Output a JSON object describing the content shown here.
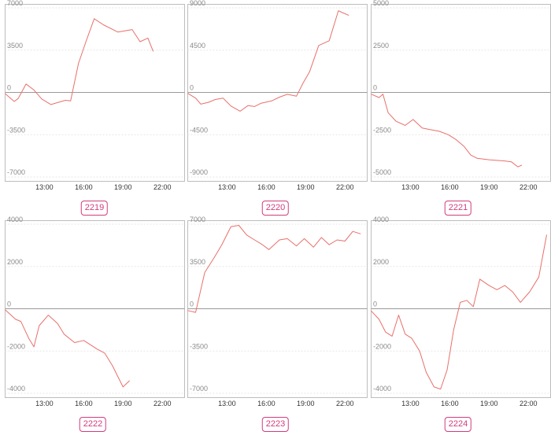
{
  "series_color": "#e8706b",
  "label_color": "#d23b7d",
  "chart_data": [
    {
      "type": "line",
      "title": "2219",
      "y_ticks": [
        7000,
        3500,
        0,
        -3500,
        -7000
      ],
      "ylim": [
        -7000,
        7000
      ],
      "x_ticks": [
        "13:00",
        "16:00",
        "19:00",
        "22:00"
      ],
      "x_ticks_hours": [
        13,
        16,
        19,
        22
      ],
      "xlim": [
        10.0,
        23.7
      ],
      "x_hours": [
        10.0,
        10.7,
        11.0,
        11.6,
        12.2,
        12.8,
        13.5,
        14.6,
        15.0,
        15.6,
        16.2,
        16.8,
        17.5,
        18.6,
        19.7,
        20.3,
        20.9,
        21.3
      ],
      "values": [
        -100,
        -750,
        -500,
        700,
        200,
        -550,
        -1000,
        -650,
        -700,
        2400,
        4300,
        6100,
        5600,
        5000,
        5200,
        4200,
        4500,
        3400
      ]
    },
    {
      "type": "line",
      "title": "2220",
      "y_ticks": [
        9000,
        4500,
        0,
        -4500,
        -9000
      ],
      "ylim": [
        -9000,
        9000
      ],
      "x_ticks": [
        "13:00",
        "16:00",
        "19:00",
        "22:00"
      ],
      "x_ticks_hours": [
        13,
        16,
        19,
        22
      ],
      "xlim": [
        10.0,
        23.7
      ],
      "x_hours": [
        10.0,
        10.6,
        11.0,
        11.6,
        12.1,
        12.7,
        13.3,
        14.0,
        14.6,
        15.1,
        15.6,
        16.4,
        17.0,
        17.6,
        18.3,
        18.8,
        19.3,
        20.0,
        20.8,
        21.5,
        21.8,
        22.3
      ],
      "values": [
        -100,
        -600,
        -1250,
        -1050,
        -750,
        -600,
        -1450,
        -2000,
        -1400,
        -1500,
        -1150,
        -900,
        -500,
        -200,
        -400,
        1000,
        2200,
        5000,
        5500,
        8700,
        8500,
        8200
      ]
    },
    {
      "type": "line",
      "title": "2221",
      "y_ticks": [
        5000,
        2500,
        0,
        -2500,
        -5000
      ],
      "ylim": [
        -5000,
        5000
      ],
      "x_ticks": [
        "13:00",
        "16:00",
        "19:00",
        "22:00"
      ],
      "x_ticks_hours": [
        13,
        16,
        19,
        22
      ],
      "xlim": [
        10.0,
        23.7
      ],
      "x_hours": [
        10.0,
        10.6,
        10.9,
        11.3,
        11.9,
        12.6,
        13.2,
        13.9,
        14.5,
        15.2,
        15.9,
        16.5,
        17.1,
        17.6,
        18.1,
        19.0,
        20.2,
        20.7,
        21.2,
        21.5
      ],
      "values": [
        -100,
        -300,
        -100,
        -1200,
        -1700,
        -1950,
        -1600,
        -2100,
        -2200,
        -2300,
        -2500,
        -2800,
        -3200,
        -3700,
        -3900,
        -3980,
        -4050,
        -4100,
        -4400,
        -4300
      ]
    },
    {
      "type": "line",
      "title": "2222",
      "y_ticks": [
        4000,
        2000,
        0,
        -2000,
        -4000
      ],
      "ylim": [
        -4000,
        4000
      ],
      "x_ticks": [
        "13:00",
        "16:00",
        "19:00",
        "22:00"
      ],
      "x_ticks_hours": [
        13,
        16,
        19,
        22
      ],
      "xlim": [
        10.0,
        23.7
      ],
      "x_hours": [
        10.0,
        10.8,
        11.2,
        11.8,
        12.2,
        12.6,
        13.3,
        14.0,
        14.5,
        15.3,
        16.0,
        16.5,
        17.0,
        17.6,
        18.2,
        18.6,
        19.0,
        19.5
      ],
      "values": [
        -50,
        -500,
        -600,
        -1400,
        -1800,
        -800,
        -300,
        -700,
        -1200,
        -1600,
        -1500,
        -1700,
        -1900,
        -2100,
        -2700,
        -3200,
        -3700,
        -3400
      ]
    },
    {
      "type": "line",
      "title": "2223",
      "y_ticks": [
        7000,
        3500,
        0,
        -3500,
        -7000
      ],
      "ylim": [
        -7000,
        7000
      ],
      "x_ticks": [
        "13:00",
        "16:00",
        "19:00",
        "22:00"
      ],
      "x_ticks_hours": [
        13,
        16,
        19,
        22
      ],
      "xlim": [
        10.0,
        23.7
      ],
      "x_hours": [
        10.0,
        10.6,
        11.3,
        12.0,
        12.6,
        13.3,
        13.9,
        14.5,
        15.1,
        15.7,
        16.2,
        17.0,
        17.6,
        18.3,
        18.9,
        19.6,
        20.2,
        20.8,
        21.4,
        22.0,
        22.6,
        23.2
      ],
      "values": [
        -150,
        -300,
        3000,
        4200,
        5300,
        6800,
        6900,
        6100,
        5700,
        5300,
        4900,
        5700,
        5800,
        5200,
        5800,
        5100,
        5900,
        5300,
        5700,
        5600,
        6400,
        6200
      ]
    },
    {
      "type": "line",
      "title": "2224",
      "y_ticks": [
        4000,
        2000,
        0,
        -2000,
        -4000
      ],
      "ylim": [
        -4000,
        4000
      ],
      "x_ticks": [
        "13:00",
        "16:00",
        "19:00",
        "22:00"
      ],
      "x_ticks_hours": [
        13,
        16,
        19,
        22
      ],
      "xlim": [
        10.0,
        23.7
      ],
      "x_hours": [
        10.0,
        10.6,
        11.1,
        11.6,
        12.1,
        12.6,
        13.1,
        13.7,
        14.2,
        14.8,
        15.3,
        15.8,
        16.3,
        16.8,
        17.3,
        17.8,
        18.3,
        19.0,
        19.6,
        20.2,
        20.8,
        21.4,
        22.1,
        22.8,
        23.4
      ],
      "values": [
        -100,
        -500,
        -1100,
        -1300,
        -300,
        -1200,
        -1400,
        -2000,
        -3000,
        -3700,
        -3800,
        -2900,
        -1000,
        300,
        400,
        100,
        1400,
        1100,
        900,
        1100,
        800,
        300,
        800,
        1500,
        3500
      ]
    }
  ]
}
